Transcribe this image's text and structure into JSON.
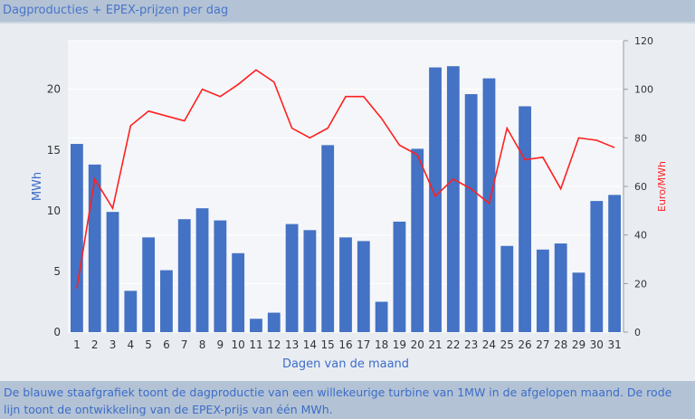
{
  "header": {
    "title": "Dagproducties + EPEX-prijzen per dag"
  },
  "footer": {
    "text": "De blauwe staafgrafiek toont de dagproductie van een willekeurige turbine van 1MW in de afgelopen maand. De rode lijn toont de ontwikkeling van de EPEX-prijs van één MWh."
  },
  "chart_data": {
    "type": "bar+line",
    "xlabel": "Dagen van de maand",
    "ylabel": "MWh",
    "y2label": "Euro/MWh",
    "ylim": [
      0,
      24
    ],
    "y2lim": [
      0,
      120
    ],
    "yticks": [
      0,
      5,
      10,
      15,
      20
    ],
    "y2ticks": [
      0,
      20,
      40,
      60,
      80,
      100,
      120
    ],
    "grid": true,
    "colors": {
      "bars": "#4472c4",
      "line": "#ff2020"
    },
    "categories": [
      "1",
      "2",
      "3",
      "4",
      "5",
      "6",
      "7",
      "8",
      "9",
      "10",
      "11",
      "12",
      "13",
      "14",
      "15",
      "16",
      "17",
      "18",
      "19",
      "20",
      "21",
      "22",
      "23",
      "24",
      "25",
      "26",
      "27",
      "28",
      "29",
      "30",
      "31"
    ],
    "series": [
      {
        "type": "bar",
        "axis": "left",
        "values": [
          15.5,
          13.8,
          9.9,
          3.4,
          7.8,
          5.1,
          9.3,
          10.2,
          9.2,
          6.5,
          1.1,
          1.6,
          8.9,
          8.4,
          15.4,
          7.8,
          7.5,
          2.5,
          9.1,
          15.1,
          21.8,
          21.9,
          19.6,
          20.9,
          7.1,
          18.6,
          6.8,
          7.3,
          4.9,
          10.8,
          11.3
        ]
      },
      {
        "type": "line",
        "axis": "right",
        "values": [
          18,
          63,
          51,
          85,
          91,
          89,
          87,
          100,
          97,
          102,
          108,
          103,
          84,
          80,
          84,
          97,
          97,
          88,
          77,
          73,
          56,
          63,
          59,
          53,
          84,
          71,
          72,
          59,
          80,
          79,
          76
        ]
      }
    ]
  }
}
